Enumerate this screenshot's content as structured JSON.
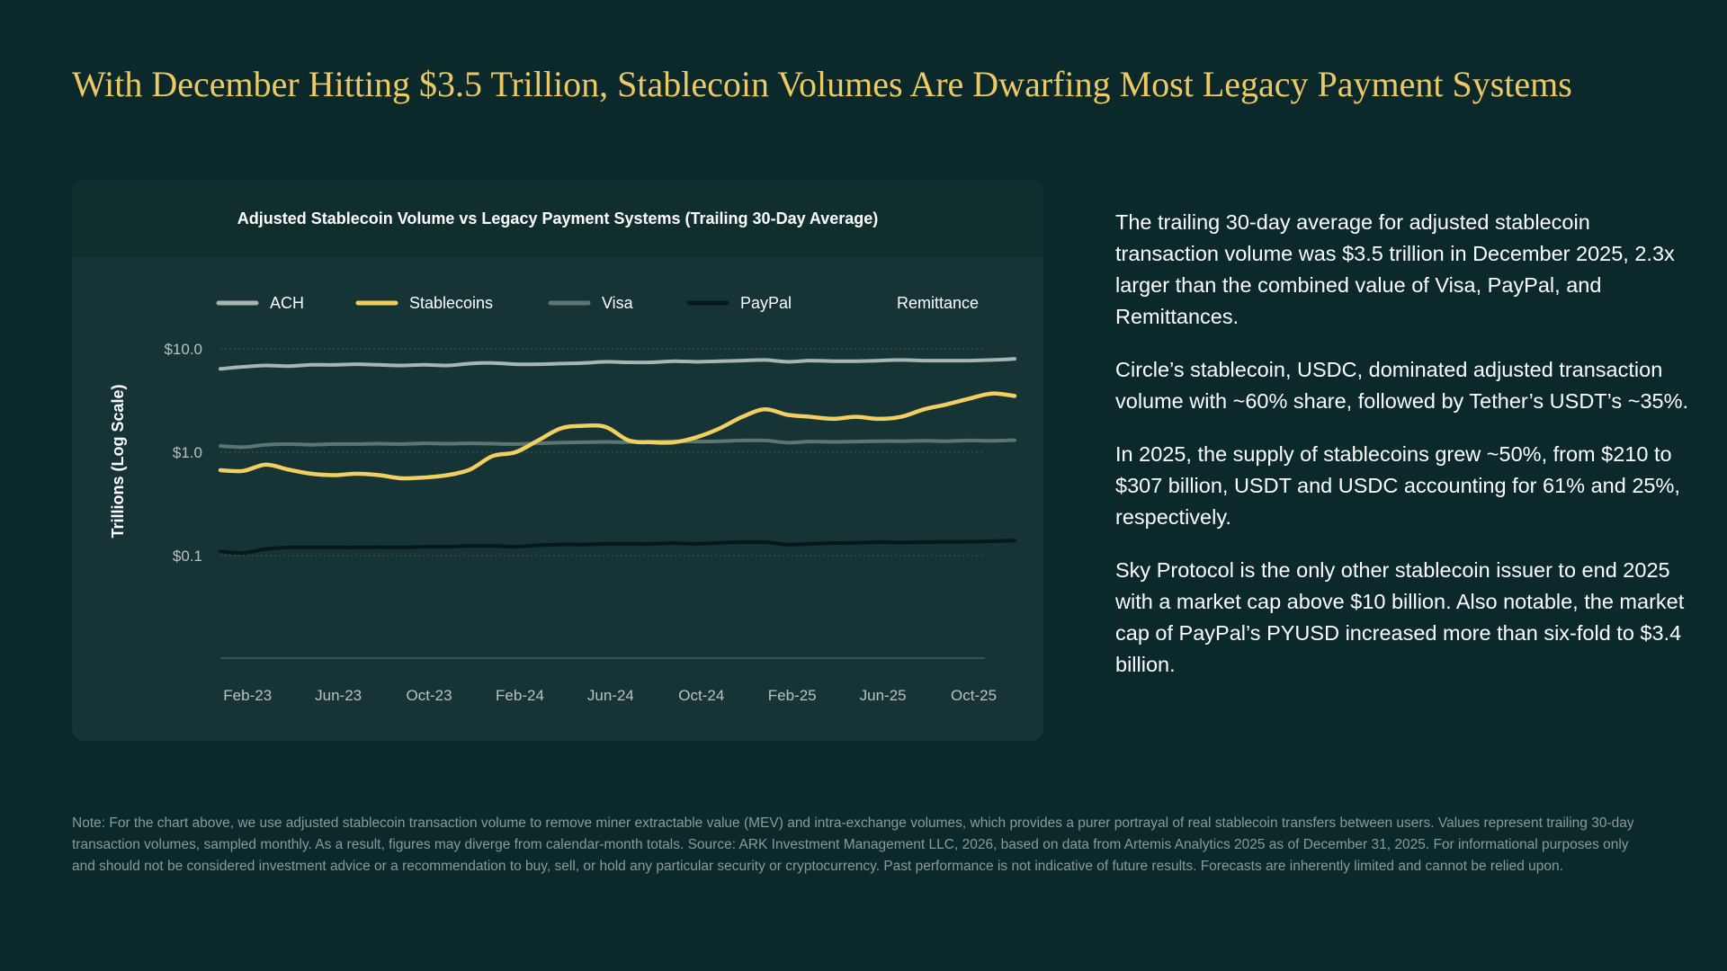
{
  "page": {
    "title": "With December Hitting $3.5 Trillion, Stablecoin Volumes Are Dwarfing Most Legacy Payment Systems",
    "paragraphs": [
      "The trailing 30-day average for adjusted stablecoin transaction volume was $3.5 trillion in December 2025, 2.3x larger than the combined value of Visa, PayPal, and Remittances.",
      "Circle’s stablecoin, USDC, dominated adjusted transaction volume with ~60% share, followed by Tether’s USDT’s ~35%.",
      "In 2025, the supply of stablecoins grew ~50%, from $210 to $307 billion, USDT and USDC accounting for 61% and 25%, respectively.",
      "Sky Protocol is the only other stablecoin issuer to end 2025 with a market cap above $10 billion. Also notable, the market cap of PayPal’s PYUSD increased more than six-fold to $3.4 billion."
    ],
    "note": "Note: For the chart above, we use adjusted stablecoin transaction volume to remove miner extractable value (MEV) and intra-exchange volumes, which provides a purer portrayal of real stablecoin transfers between users. Values represent trailing 30-day transaction volumes, sampled monthly. As a result, figures may diverge from calendar-month totals. Source: ARK Investment Management LLC, 2026, based on data from Artemis Analytics 2025 as of December 31, 2025. For informational purposes only and should not be considered investment advice or a recommendation to buy, sell, or hold any particular security or cryptocurrency. Past performance is not indicative of future results. Forecasts are inherently limited and cannot be relied upon."
  },
  "colors": {
    "background": "#0b292a",
    "title": "#ecc964",
    "panel": "#163435"
  },
  "chart_data": {
    "type": "line",
    "title": "Adjusted Stablecoin Volume vs Legacy Payment Systems (Trailing 30-Day Average)",
    "xlabel": "",
    "ylabel": "Trillions (Log Scale)",
    "yscale": "log",
    "ylim": [
      0.01,
      10
    ],
    "yticks": [
      {
        "value": 10,
        "label": "$10.0"
      },
      {
        "value": 1,
        "label": "$1.0"
      },
      {
        "value": 0.1,
        "label": "$0.1"
      }
    ],
    "xticks": [
      {
        "index": 1,
        "label": "Feb-23"
      },
      {
        "index": 5,
        "label": "Jun-23"
      },
      {
        "index": 9,
        "label": "Oct-23"
      },
      {
        "index": 13,
        "label": "Feb-24"
      },
      {
        "index": 17,
        "label": "Jun-24"
      },
      {
        "index": 21,
        "label": "Oct-24"
      },
      {
        "index": 25,
        "label": "Feb-25"
      },
      {
        "index": 29,
        "label": "Jun-25"
      },
      {
        "index": 33,
        "label": "Oct-25"
      }
    ],
    "legend_position": "top",
    "grid": "horizontal-dotted",
    "categories": [
      "Jan-23",
      "Feb-23",
      "Mar-23",
      "Apr-23",
      "May-23",
      "Jun-23",
      "Jul-23",
      "Aug-23",
      "Sep-23",
      "Oct-23",
      "Nov-23",
      "Dec-23",
      "Jan-24",
      "Feb-24",
      "Mar-24",
      "Apr-24",
      "May-24",
      "Jun-24",
      "Jul-24",
      "Aug-24",
      "Sep-24",
      "Oct-24",
      "Nov-24",
      "Dec-24",
      "Jan-25",
      "Feb-25",
      "Mar-25",
      "Apr-25",
      "May-25",
      "Jun-25",
      "Jul-25",
      "Aug-25",
      "Sep-25",
      "Oct-25",
      "Nov-25",
      "Dec-25"
    ],
    "series": [
      {
        "name": "ACH",
        "color": "#a9b5b1",
        "values": [
          6.4,
          6.7,
          6.9,
          6.8,
          7.0,
          7.0,
          7.1,
          7.0,
          6.9,
          7.0,
          6.9,
          7.2,
          7.3,
          7.1,
          7.1,
          7.2,
          7.3,
          7.5,
          7.4,
          7.4,
          7.6,
          7.5,
          7.6,
          7.7,
          7.8,
          7.5,
          7.7,
          7.6,
          7.6,
          7.7,
          7.8,
          7.7,
          7.7,
          7.7,
          7.8,
          8.0
        ]
      },
      {
        "name": "Stablecoins",
        "color": "#f1d060",
        "values": [
          0.67,
          0.66,
          0.76,
          0.68,
          0.62,
          0.6,
          0.62,
          0.6,
          0.56,
          0.57,
          0.6,
          0.68,
          0.92,
          1.0,
          1.3,
          1.7,
          1.8,
          1.75,
          1.3,
          1.25,
          1.25,
          1.4,
          1.7,
          2.2,
          2.6,
          2.3,
          2.2,
          2.1,
          2.2,
          2.1,
          2.2,
          2.6,
          2.9,
          3.3,
          3.7,
          3.5
        ]
      },
      {
        "name": "Visa",
        "color": "#5d7571",
        "values": [
          1.15,
          1.12,
          1.18,
          1.2,
          1.18,
          1.2,
          1.2,
          1.21,
          1.2,
          1.22,
          1.21,
          1.22,
          1.21,
          1.2,
          1.22,
          1.24,
          1.25,
          1.26,
          1.25,
          1.27,
          1.28,
          1.27,
          1.28,
          1.3,
          1.3,
          1.24,
          1.27,
          1.26,
          1.27,
          1.28,
          1.28,
          1.29,
          1.28,
          1.3,
          1.29,
          1.31
        ]
      },
      {
        "name": "PayPal",
        "color": "#061819",
        "values": [
          0.11,
          0.106,
          0.116,
          0.12,
          0.12,
          0.12,
          0.12,
          0.121,
          0.12,
          0.122,
          0.122,
          0.124,
          0.124,
          0.122,
          0.126,
          0.128,
          0.128,
          0.13,
          0.13,
          0.13,
          0.132,
          0.13,
          0.133,
          0.135,
          0.135,
          0.128,
          0.13,
          0.132,
          0.133,
          0.135,
          0.134,
          0.135,
          0.136,
          0.136,
          0.138,
          0.14
        ]
      },
      {
        "name": "Remittance",
        "color": "#123233",
        "values": [
          0.068,
          0.066,
          0.07,
          0.069,
          0.07,
          0.07,
          0.07,
          0.071,
          0.07,
          0.071,
          0.071,
          0.072,
          0.072,
          0.071,
          0.072,
          0.073,
          0.073,
          0.074,
          0.074,
          0.074,
          0.075,
          0.074,
          0.075,
          0.076,
          0.076,
          0.072,
          0.074,
          0.075,
          0.075,
          0.076,
          0.076,
          0.076,
          0.077,
          0.077,
          0.077,
          0.078
        ]
      }
    ]
  }
}
